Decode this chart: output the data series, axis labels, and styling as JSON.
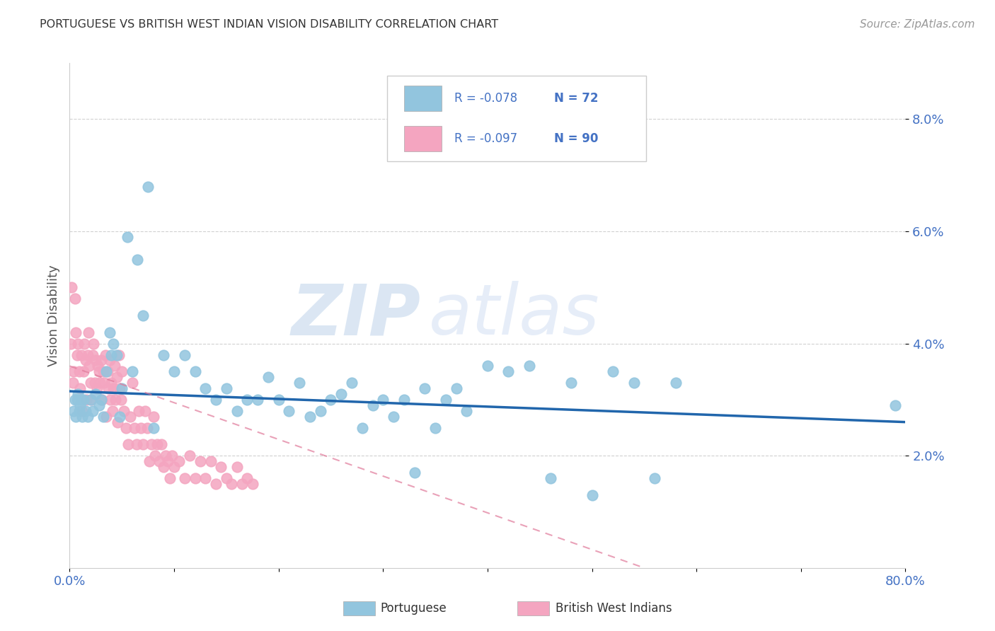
{
  "title": "PORTUGUESE VS BRITISH WEST INDIAN VISION DISABILITY CORRELATION CHART",
  "source": "Source: ZipAtlas.com",
  "ylabel": "Vision Disability",
  "xlim": [
    0.0,
    0.8
  ],
  "ylim": [
    0.0,
    0.09
  ],
  "yticks": [
    0.02,
    0.04,
    0.06,
    0.08
  ],
  "ytick_labels": [
    "2.0%",
    "4.0%",
    "6.0%",
    "8.0%"
  ],
  "blue_color": "#92c5de",
  "pink_color": "#f4a5c0",
  "blue_line_color": "#2166ac",
  "pink_line_color": "#e07a9a",
  "watermark_zip": "ZIP",
  "watermark_atlas": "atlas",
  "portuguese_x": [
    0.004,
    0.005,
    0.006,
    0.007,
    0.008,
    0.009,
    0.01,
    0.011,
    0.012,
    0.013,
    0.015,
    0.017,
    0.02,
    0.022,
    0.025,
    0.028,
    0.03,
    0.032,
    0.035,
    0.038,
    0.04,
    0.042,
    0.045,
    0.048,
    0.05,
    0.055,
    0.06,
    0.065,
    0.07,
    0.075,
    0.08,
    0.09,
    0.1,
    0.11,
    0.12,
    0.13,
    0.14,
    0.15,
    0.16,
    0.17,
    0.18,
    0.19,
    0.2,
    0.21,
    0.22,
    0.23,
    0.24,
    0.25,
    0.26,
    0.27,
    0.28,
    0.29,
    0.3,
    0.31,
    0.32,
    0.33,
    0.34,
    0.35,
    0.36,
    0.37,
    0.38,
    0.4,
    0.42,
    0.44,
    0.46,
    0.48,
    0.5,
    0.52,
    0.54,
    0.56,
    0.58,
    0.79
  ],
  "portuguese_y": [
    0.028,
    0.03,
    0.027,
    0.03,
    0.031,
    0.028,
    0.029,
    0.03,
    0.027,
    0.03,
    0.028,
    0.027,
    0.03,
    0.028,
    0.031,
    0.029,
    0.03,
    0.027,
    0.035,
    0.042,
    0.038,
    0.04,
    0.038,
    0.027,
    0.032,
    0.059,
    0.035,
    0.055,
    0.045,
    0.068,
    0.025,
    0.038,
    0.035,
    0.038,
    0.035,
    0.032,
    0.03,
    0.032,
    0.028,
    0.03,
    0.03,
    0.034,
    0.03,
    0.028,
    0.033,
    0.027,
    0.028,
    0.03,
    0.031,
    0.033,
    0.025,
    0.029,
    0.03,
    0.027,
    0.03,
    0.017,
    0.032,
    0.025,
    0.03,
    0.032,
    0.028,
    0.036,
    0.035,
    0.036,
    0.016,
    0.033,
    0.013,
    0.035,
    0.033,
    0.016,
    0.033,
    0.029
  ],
  "bwi_x": [
    0.001,
    0.002,
    0.003,
    0.004,
    0.005,
    0.006,
    0.007,
    0.008,
    0.009,
    0.01,
    0.011,
    0.012,
    0.013,
    0.014,
    0.015,
    0.016,
    0.017,
    0.018,
    0.019,
    0.02,
    0.021,
    0.022,
    0.023,
    0.024,
    0.025,
    0.026,
    0.027,
    0.028,
    0.029,
    0.03,
    0.031,
    0.032,
    0.033,
    0.034,
    0.035,
    0.036,
    0.037,
    0.038,
    0.039,
    0.04,
    0.041,
    0.042,
    0.043,
    0.044,
    0.045,
    0.046,
    0.047,
    0.048,
    0.049,
    0.05,
    0.052,
    0.054,
    0.056,
    0.058,
    0.06,
    0.062,
    0.064,
    0.066,
    0.068,
    0.07,
    0.072,
    0.074,
    0.076,
    0.078,
    0.08,
    0.082,
    0.084,
    0.086,
    0.088,
    0.09,
    0.092,
    0.094,
    0.096,
    0.098,
    0.1,
    0.105,
    0.11,
    0.115,
    0.12,
    0.125,
    0.13,
    0.135,
    0.14,
    0.145,
    0.15,
    0.155,
    0.16,
    0.165,
    0.17,
    0.175
  ],
  "bwi_y": [
    0.04,
    0.05,
    0.033,
    0.035,
    0.048,
    0.042,
    0.038,
    0.04,
    0.035,
    0.032,
    0.038,
    0.028,
    0.035,
    0.04,
    0.037,
    0.03,
    0.038,
    0.042,
    0.036,
    0.033,
    0.03,
    0.038,
    0.04,
    0.033,
    0.037,
    0.032,
    0.036,
    0.035,
    0.033,
    0.037,
    0.03,
    0.035,
    0.033,
    0.038,
    0.027,
    0.035,
    0.032,
    0.037,
    0.03,
    0.033,
    0.028,
    0.032,
    0.036,
    0.03,
    0.034,
    0.026,
    0.038,
    0.032,
    0.03,
    0.035,
    0.028,
    0.025,
    0.022,
    0.027,
    0.033,
    0.025,
    0.022,
    0.028,
    0.025,
    0.022,
    0.028,
    0.025,
    0.019,
    0.022,
    0.027,
    0.02,
    0.022,
    0.019,
    0.022,
    0.018,
    0.02,
    0.019,
    0.016,
    0.02,
    0.018,
    0.019,
    0.016,
    0.02,
    0.016,
    0.019,
    0.016,
    0.019,
    0.015,
    0.018,
    0.016,
    0.015,
    0.018,
    0.015,
    0.016,
    0.015
  ]
}
